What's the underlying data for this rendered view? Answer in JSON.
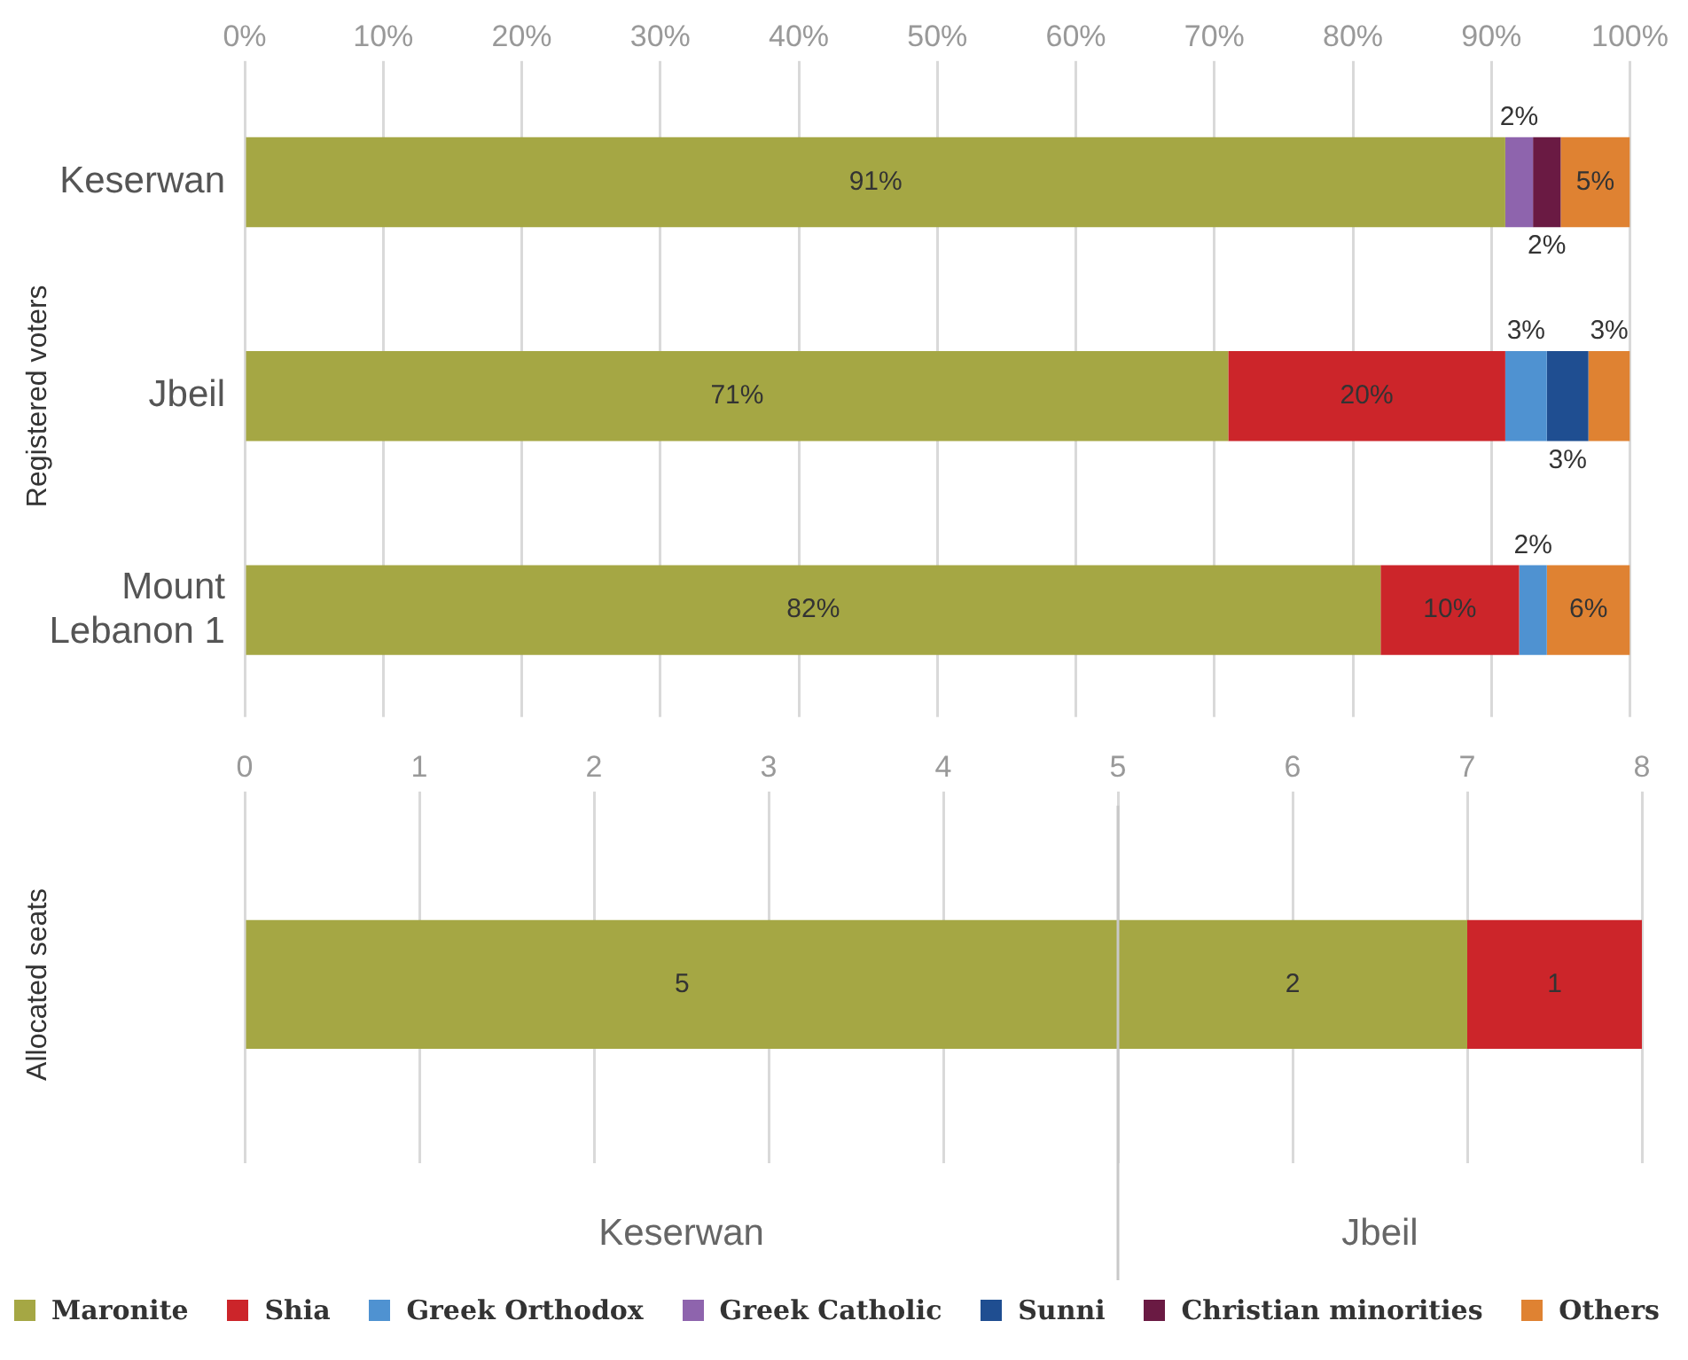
{
  "chart_data": [
    {
      "type": "bar",
      "orientation": "horizontal",
      "stacked": true,
      "ylabel": "Registered voters",
      "categories": [
        "Keserwan",
        "Jbeil",
        "Mount Lebanon 1"
      ],
      "series": [
        {
          "name": "Maronite",
          "color": "#a5a744",
          "values": [
            91,
            71,
            82
          ],
          "value_labels": [
            "91%",
            "71%",
            "82%"
          ]
        },
        {
          "name": "Shia",
          "color": "#cc252a",
          "values": [
            null,
            20,
            10
          ],
          "value_labels": [
            null,
            "20%",
            "10%"
          ]
        },
        {
          "name": "Greek Orthodox",
          "color": "#4f92d1",
          "values": [
            null,
            3,
            2
          ],
          "value_labels": [
            null,
            "3%",
            "2%"
          ]
        },
        {
          "name": "Greek Catholic",
          "color": "#8e64ad",
          "values": [
            2,
            null,
            null
          ],
          "value_labels": [
            "2%",
            null,
            null
          ]
        },
        {
          "name": "Sunni",
          "color": "#1f4e91",
          "values": [
            null,
            3,
            null
          ],
          "value_labels": [
            null,
            "3%",
            null
          ]
        },
        {
          "name": "Christian minorities",
          "color": "#6a1a43",
          "values": [
            2,
            null,
            null
          ],
          "value_labels": [
            "2%",
            null,
            null
          ]
        },
        {
          "name": "Others",
          "color": "#df8232",
          "values": [
            5,
            3,
            6
          ],
          "value_labels": [
            "5%",
            "3%",
            "6%"
          ]
        }
      ],
      "xlim": [
        0,
        100
      ],
      "xticks": [
        {
          "value": 0,
          "label": "0%"
        },
        {
          "value": 10,
          "label": "10%"
        },
        {
          "value": 20,
          "label": "20%"
        },
        {
          "value": 30,
          "label": "30%"
        },
        {
          "value": 40,
          "label": "40%"
        },
        {
          "value": 50,
          "label": "50%"
        },
        {
          "value": 60,
          "label": "60%"
        },
        {
          "value": 70,
          "label": "70%"
        },
        {
          "value": 80,
          "label": "80%"
        },
        {
          "value": 90,
          "label": "90%"
        },
        {
          "value": 100,
          "label": "100%"
        }
      ],
      "grid": "x",
      "legend": "bottom"
    },
    {
      "type": "bar",
      "orientation": "horizontal",
      "stacked": true,
      "ylabel": "Allocated seats",
      "categories": [
        null
      ],
      "series": [
        {
          "color": "#a5a744",
          "values": [
            5
          ]
        },
        {
          "color": "#a5a744",
          "values": [
            2
          ]
        },
        {
          "color": "#cc252a",
          "values": [
            1
          ]
        }
      ],
      "xlim": [
        0,
        8
      ],
      "xticks": [
        0,
        1,
        2,
        3,
        4,
        5,
        6,
        7,
        8
      ],
      "grid": "x",
      "data_labels": true,
      "ref_lines": [
        {
          "axis": "x",
          "value": 5,
          "color": "#c8c8c8"
        }
      ],
      "annotations": [
        "Keserwan",
        "Jbeil"
      ]
    }
  ]
}
